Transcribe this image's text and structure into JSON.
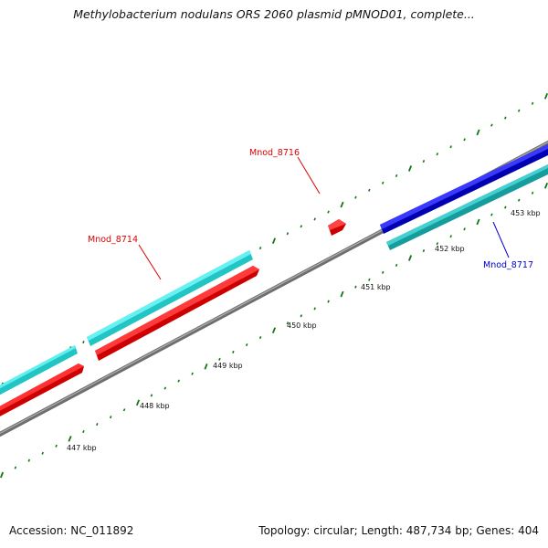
{
  "header": {
    "title": "Methylobacterium nodulans ORS 2060 plasmid pMNOD01, complete..."
  },
  "footer": {
    "accession": "Accession: NC_011892",
    "summary": "Topology: circular; Length: 487,734 bp; Genes: 404"
  },
  "axis": {
    "ticks": [
      {
        "label": "447 kbp"
      },
      {
        "label": "448 kbp"
      },
      {
        "label": "449 kbp"
      },
      {
        "label": "450 kbp"
      },
      {
        "label": "451 kbp"
      },
      {
        "label": "452 kbp"
      },
      {
        "label": "453 kbp"
      }
    ]
  },
  "genes": [
    {
      "name": "Mnod_8714",
      "color": "#dd0000"
    },
    {
      "name": "Mnod_8716",
      "color": "#dd0000"
    },
    {
      "name": "Mnod_8717",
      "color": "#0000cc"
    }
  ],
  "colors": {
    "backbone": "#888888",
    "forward_cds": "#ee0000",
    "forward_cds_alt": "#0000dd",
    "reverse_feature": "#33e6e6",
    "reverse_feature_alt": "#22bbbb",
    "ticks": "#117711"
  }
}
